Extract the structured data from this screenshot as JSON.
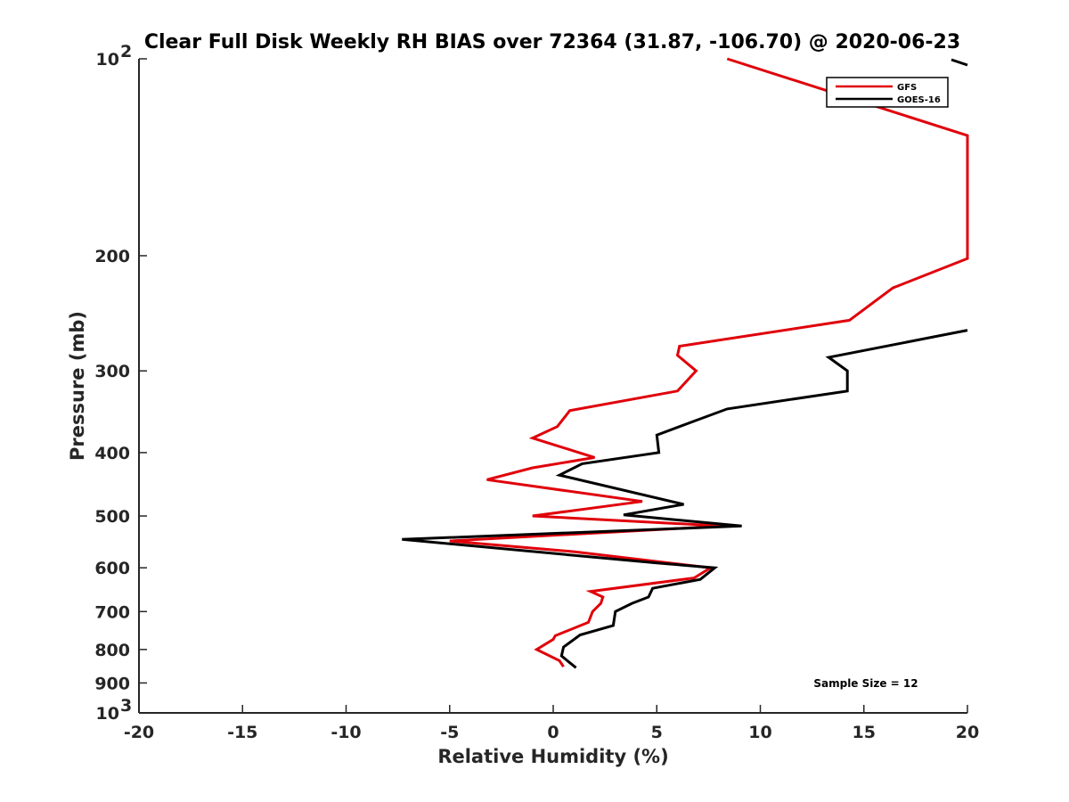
{
  "chart_data": {
    "type": "line",
    "title": "Clear Full Disk Weekly RH BIAS over 72364 (31.87, -106.70) @ 2020-06-23",
    "xlabel": "Relative Humidity (%)",
    "ylabel": "Pressure (mb)",
    "xlim": [
      -20,
      20
    ],
    "ylim": [
      100,
      1000
    ],
    "y_scale": "log",
    "y_reversed": true,
    "grid": false,
    "legend_position": "top-right",
    "x_ticks": [
      "-20",
      "-15",
      "-10",
      "-5",
      "0",
      "5",
      "10",
      "15",
      "20"
    ],
    "y_tick_labels": [
      {
        "value": 100,
        "base": "10",
        "exp": "2"
      },
      {
        "value": 200,
        "base": "200",
        "exp": ""
      },
      {
        "value": 300,
        "base": "300",
        "exp": ""
      },
      {
        "value": 400,
        "base": "400",
        "exp": ""
      },
      {
        "value": 500,
        "base": "500",
        "exp": ""
      },
      {
        "value": 600,
        "base": "600",
        "exp": ""
      },
      {
        "value": 700,
        "base": "700",
        "exp": ""
      },
      {
        "value": 800,
        "base": "800",
        "exp": ""
      },
      {
        "value": 900,
        "base": "900",
        "exp": ""
      },
      {
        "value": 1000,
        "base": "10",
        "exp": "3"
      }
    ],
    "annotation": "Sample Size = 12",
    "series": [
      {
        "name": "GFS",
        "color": "#e0000a",
        "points": [
          [
            8.4,
            100
          ],
          [
            20,
            131
          ],
          [
            20,
            202
          ],
          [
            16.4,
            224
          ],
          [
            14.3,
            251
          ],
          [
            6.1,
            275
          ],
          [
            6.0,
            284
          ],
          [
            6.9,
            300
          ],
          [
            6.0,
            322
          ],
          [
            0.8,
            345
          ],
          [
            0.2,
            365
          ],
          [
            -1.0,
            380
          ],
          [
            2.0,
            407
          ],
          [
            -1.0,
            422
          ],
          [
            -3.2,
            440
          ],
          [
            4.3,
            475
          ],
          [
            -1.0,
            500
          ],
          [
            8.2,
            518
          ],
          [
            -5.0,
            546
          ],
          [
            1.0,
            567
          ],
          [
            7.6,
            600
          ],
          [
            6.8,
            622
          ],
          [
            1.8,
            652
          ],
          [
            2.4,
            665
          ],
          [
            2.3,
            680
          ],
          [
            1.9,
            700
          ],
          [
            1.7,
            727
          ],
          [
            0.1,
            762
          ],
          [
            0.0,
            772
          ],
          [
            -0.8,
            800
          ],
          [
            0.3,
            832
          ],
          [
            0.5,
            850
          ]
        ]
      },
      {
        "name": "GOES-16",
        "color": "#000000",
        "points": [
          [
            20,
            260
          ],
          [
            18.4,
            266
          ],
          [
            13.3,
            286
          ],
          [
            14.2,
            300
          ],
          [
            14.2,
            322
          ],
          [
            8.4,
            343
          ],
          [
            6.8,
            358
          ],
          [
            5.0,
            376
          ],
          [
            5.1,
            400
          ],
          [
            1.4,
            416
          ],
          [
            0.3,
            433
          ],
          [
            6.3,
            480
          ],
          [
            3.4,
            498
          ],
          [
            9.1,
            518
          ],
          [
            -7.3,
            543
          ],
          [
            5.0,
            590
          ],
          [
            7.8,
            600
          ],
          [
            7.1,
            625
          ],
          [
            4.8,
            645
          ],
          [
            4.6,
            665
          ],
          [
            3.8,
            680
          ],
          [
            3.0,
            700
          ],
          [
            2.9,
            735
          ],
          [
            1.3,
            760
          ],
          [
            0.5,
            793
          ],
          [
            0.4,
            818
          ],
          [
            0.8,
            838
          ],
          [
            1.1,
            853
          ]
        ]
      }
    ]
  }
}
